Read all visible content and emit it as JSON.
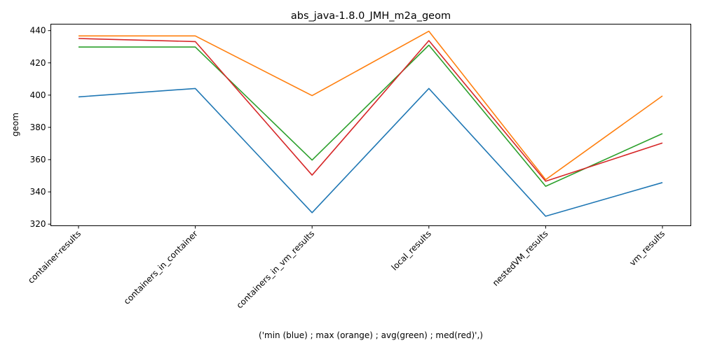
{
  "chart_data": {
    "type": "line",
    "title": "abs_java-1.8.0_JMH_m2a_geom",
    "xlabel": "('min (blue) ; max (orange) ; avg(green) ; med(red)',)",
    "ylabel": "geom",
    "categories": [
      "container-results",
      "containers_in_container",
      "containers_in_vm_results",
      "local_results",
      "nestedVM_results",
      "vm_results"
    ],
    "ylim": [
      319,
      444
    ],
    "yticks": [
      320,
      340,
      360,
      380,
      400,
      420,
      440
    ],
    "grid": false,
    "series": [
      {
        "color": "#1f77b4",
        "values": [
          398.9,
          404.1,
          327.1,
          404.1,
          324.9,
          345.8
        ]
      },
      {
        "color": "#ff7f0e",
        "values": [
          436.7,
          436.7,
          399.7,
          439.6,
          347.6,
          399.5
        ]
      },
      {
        "color": "#2ca02c",
        "values": [
          429.8,
          429.8,
          359.7,
          431.0,
          343.5,
          376.1
        ]
      },
      {
        "color": "#d62728",
        "values": [
          435.1,
          433.2,
          350.4,
          433.8,
          346.6,
          370.3
        ]
      }
    ]
  }
}
